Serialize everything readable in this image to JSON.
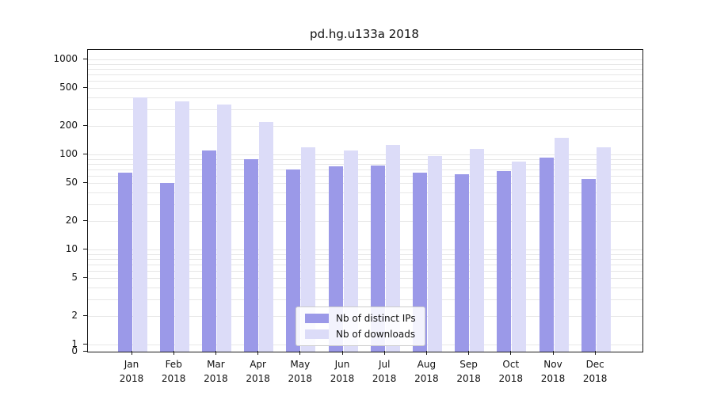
{
  "chart_data": {
    "type": "bar",
    "title": "pd.hg.u133a 2018",
    "categories": [
      "Jan",
      "Feb",
      "Mar",
      "Apr",
      "May",
      "Jun",
      "Jul",
      "Aug",
      "Sep",
      "Oct",
      "Nov",
      "Dec"
    ],
    "year_label": "2018",
    "series": [
      {
        "name": "Nb of distinct IPs",
        "color": "#9b99e8",
        "values": [
          65,
          50,
          110,
          90,
          70,
          75,
          77,
          65,
          62,
          67,
          93,
          55
        ]
      },
      {
        "name": "Nb of downloads",
        "color": "#dcdcf8",
        "values": [
          400,
          365,
          335,
          220,
          120,
          110,
          125,
          97,
          115,
          85,
          150,
          120
        ]
      }
    ],
    "yticks": [
      1000,
      500,
      200,
      100,
      50,
      20,
      10,
      5,
      2,
      1,
      0
    ],
    "yscale": "symlog",
    "ylim": [
      0,
      1259
    ],
    "grid": true,
    "grid_color": "#e7e7e7",
    "legend_position": "lower center"
  }
}
